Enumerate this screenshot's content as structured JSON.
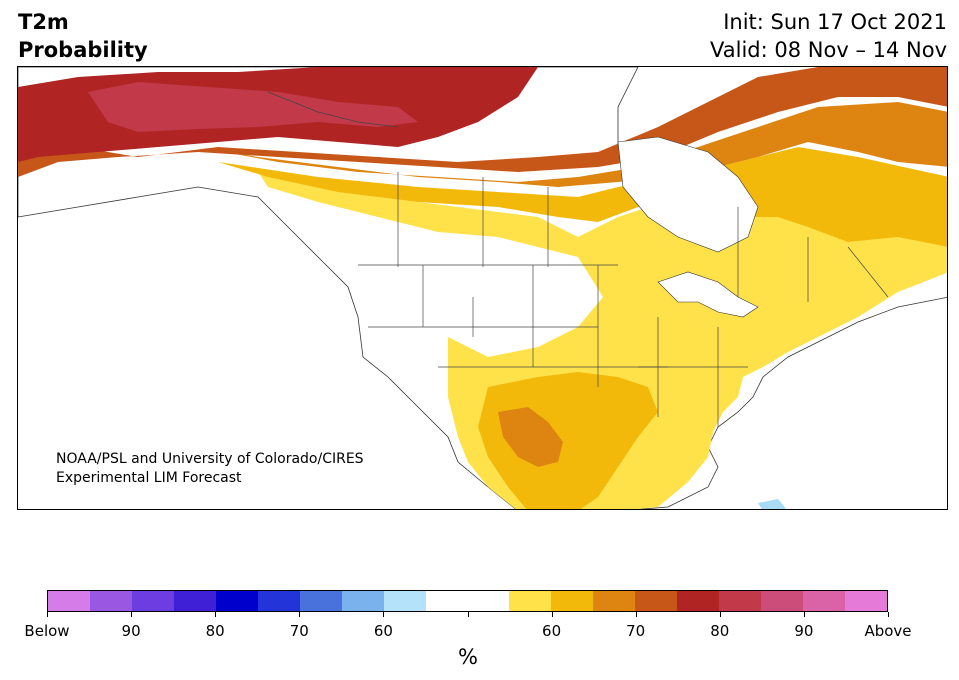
{
  "header": {
    "title_line1": "T2m",
    "title_line2": "Probability",
    "init_label": "Init: Sun 17 Oct 2021",
    "valid_label": "Valid: 08 Nov – 14 Nov"
  },
  "map": {
    "credit_line1": "NOAA/PSL and University of Colorado/CIRES",
    "credit_line2": "Experimental LIM Forecast",
    "region": "North America",
    "fill_colors": {
      "above_55_60": "#ffe24a",
      "above_60_65": "#f2b90a",
      "above_65_70": "#dd8510",
      "above_70_75": "#c75619",
      "above_75_80": "#b02424",
      "above_80_85": "#c23a4a",
      "below_55_60": "#a8dcf5"
    }
  },
  "colorbar": {
    "unit": "%",
    "colors": [
      "#d57ce9",
      "#9a58e2",
      "#6c3de0",
      "#3f20d6",
      "#0000cd",
      "#2334d8",
      "#4a72dd",
      "#7ab2ee",
      "#b3e2fa",
      "#ffffff",
      "#ffffff",
      "#ffe24a",
      "#f2b90a",
      "#dd8510",
      "#c75619",
      "#b02424",
      "#c23a4a",
      "#cc4d7a",
      "#da62a7",
      "#e67ad9"
    ],
    "labels": [
      "Below",
      "90",
      "80",
      "70",
      "60",
      "60",
      "70",
      "80",
      "90",
      "Above"
    ],
    "label_positions": [
      0,
      2,
      4,
      6,
      8,
      12,
      14,
      16,
      18,
      20
    ]
  }
}
